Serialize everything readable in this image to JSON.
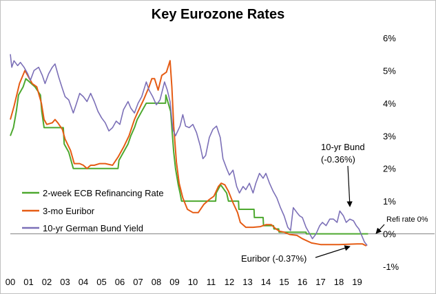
{
  "chart_data": {
    "type": "line",
    "title": "Key Eurozone Rates",
    "xlabel": "",
    "ylabel": "",
    "y_axis_side": "right",
    "ylim": [
      -1,
      6
    ],
    "y_ticks": [
      6,
      5,
      4,
      3,
      2,
      1,
      0,
      -1
    ],
    "y_tick_labels": [
      "6%",
      "5%",
      "4%",
      "3%",
      "2%",
      "1%",
      "0%",
      "-1%"
    ],
    "x_tick_labels": [
      "00",
      "01",
      "02",
      "03",
      "04",
      "05",
      "06",
      "07",
      "08",
      "09",
      "10",
      "11",
      "12",
      "13",
      "14",
      "15",
      "16",
      "17",
      "18",
      "19"
    ],
    "legend_position": "bottom-left",
    "grid": false,
    "series": [
      {
        "name": "2-week ECB Refinancing Rate",
        "color": "#4ca82e",
        "points": [
          [
            2000.0,
            3.0
          ],
          [
            2000.17,
            3.25
          ],
          [
            2000.25,
            3.5
          ],
          [
            2000.33,
            3.75
          ],
          [
            2000.45,
            4.25
          ],
          [
            2000.7,
            4.5
          ],
          [
            2000.85,
            4.75
          ],
          [
            2001.35,
            4.5
          ],
          [
            2001.65,
            4.25
          ],
          [
            2001.72,
            3.75
          ],
          [
            2001.85,
            3.25
          ],
          [
            2002.9,
            3.25
          ],
          [
            2002.95,
            2.75
          ],
          [
            2003.2,
            2.5
          ],
          [
            2003.45,
            2.0
          ],
          [
            2005.9,
            2.0
          ],
          [
            2005.95,
            2.25
          ],
          [
            2006.2,
            2.5
          ],
          [
            2006.45,
            2.75
          ],
          [
            2006.6,
            3.0
          ],
          [
            2006.8,
            3.25
          ],
          [
            2006.95,
            3.5
          ],
          [
            2007.2,
            3.75
          ],
          [
            2007.45,
            4.0
          ],
          [
            2008.5,
            4.0
          ],
          [
            2008.52,
            4.25
          ],
          [
            2008.78,
            3.75
          ],
          [
            2008.85,
            3.25
          ],
          [
            2008.95,
            2.5
          ],
          [
            2009.05,
            2.0
          ],
          [
            2009.2,
            1.5
          ],
          [
            2009.3,
            1.25
          ],
          [
            2009.38,
            1.0
          ],
          [
            2011.25,
            1.0
          ],
          [
            2011.28,
            1.25
          ],
          [
            2011.52,
            1.5
          ],
          [
            2011.85,
            1.25
          ],
          [
            2011.95,
            1.0
          ],
          [
            2012.5,
            1.0
          ],
          [
            2012.52,
            0.75
          ],
          [
            2013.35,
            0.75
          ],
          [
            2013.37,
            0.5
          ],
          [
            2013.85,
            0.5
          ],
          [
            2013.87,
            0.25
          ],
          [
            2014.42,
            0.25
          ],
          [
            2014.44,
            0.15
          ],
          [
            2014.7,
            0.15
          ],
          [
            2014.72,
            0.05
          ],
          [
            2016.2,
            0.05
          ],
          [
            2016.22,
            0.0
          ],
          [
            2019.6,
            0.0
          ]
        ]
      },
      {
        "name": "3-mo Euribor",
        "color": "#e55b13",
        "points": [
          [
            2000.0,
            3.5
          ],
          [
            2000.2,
            3.9
          ],
          [
            2000.5,
            4.6
          ],
          [
            2000.8,
            5.0
          ],
          [
            2001.0,
            4.8
          ],
          [
            2001.2,
            4.6
          ],
          [
            2001.45,
            4.5
          ],
          [
            2001.7,
            4.0
          ],
          [
            2001.85,
            3.5
          ],
          [
            2002.0,
            3.35
          ],
          [
            2002.3,
            3.4
          ],
          [
            2002.45,
            3.5
          ],
          [
            2002.6,
            3.4
          ],
          [
            2002.85,
            3.2
          ],
          [
            2003.0,
            2.9
          ],
          [
            2003.3,
            2.55
          ],
          [
            2003.5,
            2.15
          ],
          [
            2003.8,
            2.15
          ],
          [
            2004.0,
            2.1
          ],
          [
            2004.2,
            2.0
          ],
          [
            2004.4,
            2.1
          ],
          [
            2004.6,
            2.1
          ],
          [
            2004.9,
            2.15
          ],
          [
            2005.2,
            2.15
          ],
          [
            2005.6,
            2.1
          ],
          [
            2005.9,
            2.35
          ],
          [
            2006.2,
            2.65
          ],
          [
            2006.5,
            3.0
          ],
          [
            2006.8,
            3.5
          ],
          [
            2007.0,
            3.75
          ],
          [
            2007.3,
            4.1
          ],
          [
            2007.6,
            4.5
          ],
          [
            2007.75,
            4.75
          ],
          [
            2007.9,
            4.75
          ],
          [
            2008.1,
            4.4
          ],
          [
            2008.3,
            4.85
          ],
          [
            2008.55,
            4.95
          ],
          [
            2008.75,
            5.3
          ],
          [
            2008.85,
            4.5
          ],
          [
            2008.95,
            3.3
          ],
          [
            2009.1,
            2.2
          ],
          [
            2009.25,
            1.55
          ],
          [
            2009.45,
            1.1
          ],
          [
            2009.7,
            0.75
          ],
          [
            2010.0,
            0.65
          ],
          [
            2010.3,
            0.65
          ],
          [
            2010.6,
            0.9
          ],
          [
            2010.9,
            1.05
          ],
          [
            2011.15,
            1.15
          ],
          [
            2011.4,
            1.45
          ],
          [
            2011.55,
            1.55
          ],
          [
            2011.75,
            1.5
          ],
          [
            2011.95,
            1.3
          ],
          [
            2012.2,
            0.95
          ],
          [
            2012.45,
            0.65
          ],
          [
            2012.6,
            0.35
          ],
          [
            2012.9,
            0.2
          ],
          [
            2013.3,
            0.2
          ],
          [
            2013.7,
            0.22
          ],
          [
            2014.0,
            0.28
          ],
          [
            2014.3,
            0.28
          ],
          [
            2014.55,
            0.15
          ],
          [
            2014.75,
            0.08
          ],
          [
            2015.0,
            0.05
          ],
          [
            2015.3,
            -0.02
          ],
          [
            2015.7,
            -0.05
          ],
          [
            2016.0,
            -0.15
          ],
          [
            2016.5,
            -0.28
          ],
          [
            2017.0,
            -0.33
          ],
          [
            2017.5,
            -0.33
          ],
          [
            2018.0,
            -0.33
          ],
          [
            2018.5,
            -0.32
          ],
          [
            2019.0,
            -0.31
          ],
          [
            2019.3,
            -0.31
          ],
          [
            2019.5,
            -0.37
          ]
        ]
      },
      {
        "name": "10-yr German Bund Yield",
        "color": "#7b6fb7",
        "points": [
          [
            2000.0,
            5.5
          ],
          [
            2000.08,
            5.1
          ],
          [
            2000.2,
            5.3
          ],
          [
            2000.4,
            5.15
          ],
          [
            2000.55,
            5.25
          ],
          [
            2000.75,
            5.1
          ],
          [
            2000.95,
            4.9
          ],
          [
            2001.1,
            4.7
          ],
          [
            2001.3,
            5.0
          ],
          [
            2001.55,
            5.1
          ],
          [
            2001.75,
            4.85
          ],
          [
            2001.9,
            4.6
          ],
          [
            2002.1,
            4.9
          ],
          [
            2002.3,
            5.1
          ],
          [
            2002.45,
            5.2
          ],
          [
            2002.65,
            4.8
          ],
          [
            2002.85,
            4.45
          ],
          [
            2003.0,
            4.2
          ],
          [
            2003.2,
            4.1
          ],
          [
            2003.45,
            3.7
          ],
          [
            2003.6,
            3.95
          ],
          [
            2003.8,
            4.3
          ],
          [
            2004.0,
            4.2
          ],
          [
            2004.2,
            4.05
          ],
          [
            2004.4,
            4.3
          ],
          [
            2004.6,
            4.05
          ],
          [
            2004.8,
            3.75
          ],
          [
            2005.0,
            3.55
          ],
          [
            2005.2,
            3.4
          ],
          [
            2005.4,
            3.15
          ],
          [
            2005.6,
            3.25
          ],
          [
            2005.8,
            3.45
          ],
          [
            2006.0,
            3.35
          ],
          [
            2006.2,
            3.8
          ],
          [
            2006.45,
            4.05
          ],
          [
            2006.6,
            3.85
          ],
          [
            2006.8,
            3.7
          ],
          [
            2007.0,
            4.0
          ],
          [
            2007.2,
            4.2
          ],
          [
            2007.45,
            4.65
          ],
          [
            2007.6,
            4.4
          ],
          [
            2007.8,
            4.2
          ],
          [
            2008.0,
            3.95
          ],
          [
            2008.2,
            4.1
          ],
          [
            2008.45,
            4.65
          ],
          [
            2008.6,
            4.4
          ],
          [
            2008.75,
            4.05
          ],
          [
            2008.9,
            3.2
          ],
          [
            2009.05,
            3.0
          ],
          [
            2009.3,
            3.3
          ],
          [
            2009.45,
            3.65
          ],
          [
            2009.6,
            3.3
          ],
          [
            2009.8,
            3.25
          ],
          [
            2010.0,
            3.35
          ],
          [
            2010.2,
            3.1
          ],
          [
            2010.4,
            2.7
          ],
          [
            2010.55,
            2.3
          ],
          [
            2010.7,
            2.4
          ],
          [
            2010.9,
            2.95
          ],
          [
            2011.1,
            3.2
          ],
          [
            2011.3,
            3.3
          ],
          [
            2011.5,
            2.95
          ],
          [
            2011.65,
            2.3
          ],
          [
            2011.85,
            2.0
          ],
          [
            2012.0,
            1.8
          ],
          [
            2012.2,
            1.95
          ],
          [
            2012.4,
            1.45
          ],
          [
            2012.55,
            1.25
          ],
          [
            2012.75,
            1.45
          ],
          [
            2012.9,
            1.35
          ],
          [
            2013.1,
            1.55
          ],
          [
            2013.3,
            1.25
          ],
          [
            2013.45,
            1.55
          ],
          [
            2013.65,
            1.85
          ],
          [
            2013.85,
            1.7
          ],
          [
            2014.0,
            1.85
          ],
          [
            2014.2,
            1.55
          ],
          [
            2014.4,
            1.3
          ],
          [
            2014.6,
            1.1
          ],
          [
            2014.8,
            0.8
          ],
          [
            2015.0,
            0.55
          ],
          [
            2015.2,
            0.2
          ],
          [
            2015.35,
            0.1
          ],
          [
            2015.5,
            0.8
          ],
          [
            2015.7,
            0.65
          ],
          [
            2015.85,
            0.55
          ],
          [
            2016.0,
            0.5
          ],
          [
            2016.2,
            0.2
          ],
          [
            2016.45,
            -0.05
          ],
          [
            2016.55,
            -0.15
          ],
          [
            2016.75,
            0.0
          ],
          [
            2016.95,
            0.25
          ],
          [
            2017.1,
            0.35
          ],
          [
            2017.3,
            0.25
          ],
          [
            2017.5,
            0.45
          ],
          [
            2017.7,
            0.45
          ],
          [
            2017.9,
            0.35
          ],
          [
            2018.05,
            0.7
          ],
          [
            2018.25,
            0.55
          ],
          [
            2018.4,
            0.35
          ],
          [
            2018.6,
            0.45
          ],
          [
            2018.8,
            0.4
          ],
          [
            2018.95,
            0.25
          ],
          [
            2019.1,
            0.15
          ],
          [
            2019.25,
            -0.05
          ],
          [
            2019.4,
            -0.25
          ],
          [
            2019.55,
            -0.36
          ]
        ]
      }
    ],
    "annotations": [
      {
        "label": "10-yr Bund",
        "value_label": "(-0.36%)"
      },
      {
        "label": "Refi rate 0%"
      },
      {
        "label": "Euribor  (-0.37%)"
      }
    ]
  }
}
